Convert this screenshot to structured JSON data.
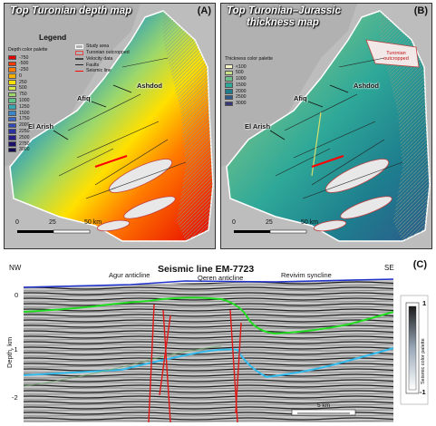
{
  "panel_a": {
    "title": "Top Turonian depth map",
    "letter": "(A)",
    "legend_title": "Legend",
    "palette_title": "Depth color palette",
    "palette": [
      {
        "label": "-750",
        "color": "#e60000"
      },
      {
        "label": "-500",
        "color": "#f23a00"
      },
      {
        "label": "-250",
        "color": "#ff7a00"
      },
      {
        "label": "0",
        "color": "#ffb000"
      },
      {
        "label": "250",
        "color": "#ffe000"
      },
      {
        "label": "500",
        "color": "#d8e84a"
      },
      {
        "label": "750",
        "color": "#9ed86a"
      },
      {
        "label": "1000",
        "color": "#5ec48a"
      },
      {
        "label": "1250",
        "color": "#3aa6b0"
      },
      {
        "label": "1500",
        "color": "#3a86c8"
      },
      {
        "label": "1750",
        "color": "#3a66c8"
      },
      {
        "label": "2000",
        "color": "#3048b8"
      },
      {
        "label": "2250",
        "color": "#2a32a0"
      },
      {
        "label": "2500",
        "color": "#241f86"
      },
      {
        "label": "2750",
        "color": "#1c126a"
      },
      {
        "label": "3000",
        "color": "#140a50"
      }
    ],
    "legend_items": [
      {
        "label": "Study area",
        "color": "#ffffff"
      },
      {
        "label": "Turonian outcropped",
        "color": "#e04848"
      },
      {
        "label": "Velocity data",
        "color": "#444444"
      },
      {
        "label": "Faults",
        "color": "#222222"
      },
      {
        "label": "Seismic line",
        "color": "#ff0000"
      }
    ],
    "cities": {
      "ashdod": "Ashdod",
      "afiq": "Afiq",
      "el_arish": "El Arish"
    },
    "scale": {
      "zero": "0",
      "mid": "25",
      "end": "50 km"
    }
  },
  "panel_b": {
    "title_line1": "Top Turonian–Jurassic",
    "title_line2": "thickness map",
    "letter": "(B)",
    "palette_title": "Thickness color palette",
    "palette": [
      {
        "label": "<100",
        "color": "#f8f8c8"
      },
      {
        "label": "500",
        "color": "#c8e088"
      },
      {
        "label": "1000",
        "color": "#6cc08c"
      },
      {
        "label": "1500",
        "color": "#2ea898"
      },
      {
        "label": "2000",
        "color": "#1e7e8e"
      },
      {
        "label": "2500",
        "color": "#2c5a8a"
      },
      {
        "label": "3000",
        "color": "#38387a"
      }
    ],
    "outcrop_label": "Turonian outcropped",
    "cities": {
      "ashdod": "Ashdod",
      "afiq": "Afiq",
      "el_arish": "El Arish"
    },
    "scale": {
      "zero": "0",
      "mid": "25",
      "end": "50 km"
    }
  },
  "panel_c": {
    "title": "Seismic line EM-7723",
    "letter": "(C)",
    "nw": "NW",
    "se": "SE",
    "structures": {
      "agur": "Agur anticline",
      "qeren": "Qeren anticline",
      "revivim": "Revivim syncline"
    },
    "depth_axis": "Depth, km",
    "depth_ticks": [
      "0",
      "-1",
      "-2"
    ],
    "scale_bar": "5 km",
    "colorbar_label": "Seismic color palette",
    "colorbar_top": "1",
    "colorbar_bottom": "-1",
    "colors": {
      "green": "#22dd22",
      "cyan": "#33bbee",
      "blue": "#2233cc",
      "fault": "#e01818"
    }
  }
}
